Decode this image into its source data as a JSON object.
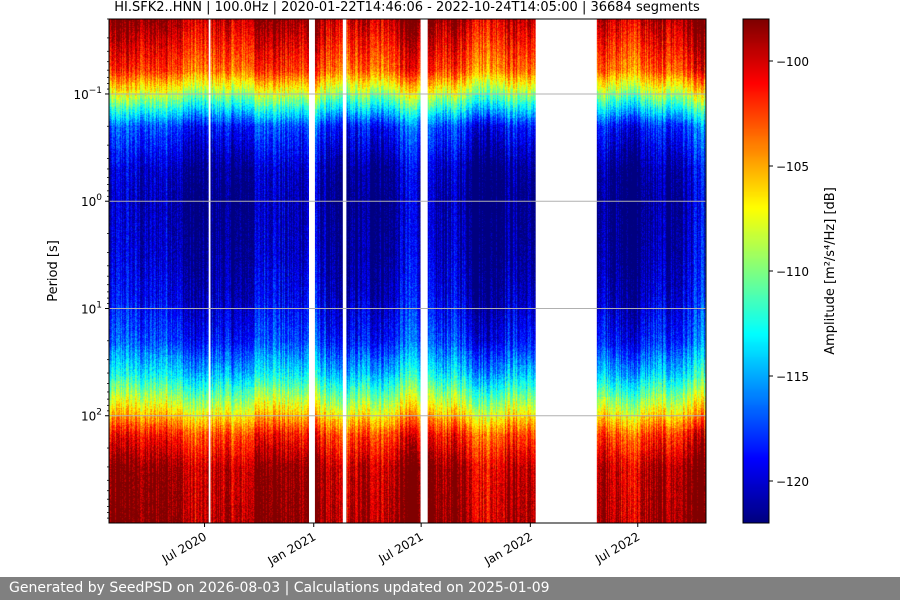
{
  "chart_data": {
    "type": "heatmap",
    "title": "HI.SFK2..HNN | 100.0Hz | 2020-01-22T14:46:06 - 2022-10-24T14:05:00 | 36684 segments",
    "xlabel": "",
    "ylabel": "Period [s]",
    "x_range": [
      "2020-01-22",
      "2022-10-24"
    ],
    "x_ticks": [
      {
        "date": "2020-07-01",
        "label": "Jul 2020"
      },
      {
        "date": "2021-01-01",
        "label": "Jan 2021"
      },
      {
        "date": "2021-07-01",
        "label": "Jul 2021"
      },
      {
        "date": "2022-01-01",
        "label": "Jan 2022"
      },
      {
        "date": "2022-07-01",
        "label": "Jul 2022"
      }
    ],
    "y_scale": "log",
    "y_inverted": true,
    "y_range": [
      0.02,
      1000
    ],
    "y_ticks": [
      {
        "value": 0.1,
        "base": "10",
        "exp": "−1"
      },
      {
        "value": 1,
        "base": "10",
        "exp": "0"
      },
      {
        "value": 10,
        "base": "10",
        "exp": "1"
      },
      {
        "value": 100,
        "base": "10",
        "exp": "2"
      }
    ],
    "grid": "horizontal",
    "colormap": "jet",
    "colorbar": {
      "label": "Amplitude [m²/s⁴/Hz] [dB]",
      "range": [
        -122,
        -98
      ],
      "ticks": [
        {
          "value": -100,
          "label": "−100"
        },
        {
          "value": -105,
          "label": "−105"
        },
        {
          "value": -110,
          "label": "−110"
        },
        {
          "value": -115,
          "label": "−115"
        },
        {
          "value": -120,
          "label": "−120"
        }
      ]
    },
    "data_gaps": [
      [
        "2020-07-08",
        "2020-07-11"
      ],
      [
        "2020-12-24",
        "2021-01-03"
      ],
      [
        "2021-02-19",
        "2021-02-25"
      ],
      [
        "2021-06-30",
        "2021-07-12"
      ],
      [
        "2022-01-10",
        "2022-04-23"
      ]
    ],
    "amplitude_profile": [
      {
        "period": 0.02,
        "db": -99
      },
      {
        "period": 0.06,
        "db": -103
      },
      {
        "period": 0.1,
        "db": -109
      },
      {
        "period": 0.2,
        "db": -118
      },
      {
        "period": 0.5,
        "db": -121
      },
      {
        "period": 1,
        "db": -121.5
      },
      {
        "period": 3,
        "db": -121
      },
      {
        "period": 8,
        "db": -120
      },
      {
        "period": 20,
        "db": -118
      },
      {
        "period": 40,
        "db": -114
      },
      {
        "period": 80,
        "db": -108
      },
      {
        "period": 150,
        "db": -102
      },
      {
        "period": 300,
        "db": -99
      },
      {
        "period": 1000,
        "db": -98.5
      }
    ]
  },
  "footer": {
    "text": "Generated by SeedPSD on 2026-08-03 | Calculations updated on 2025-01-09"
  },
  "colors": {
    "footer_bg": "#808080",
    "footer_text": "#ffffff",
    "grid": "#b0b0b0"
  }
}
